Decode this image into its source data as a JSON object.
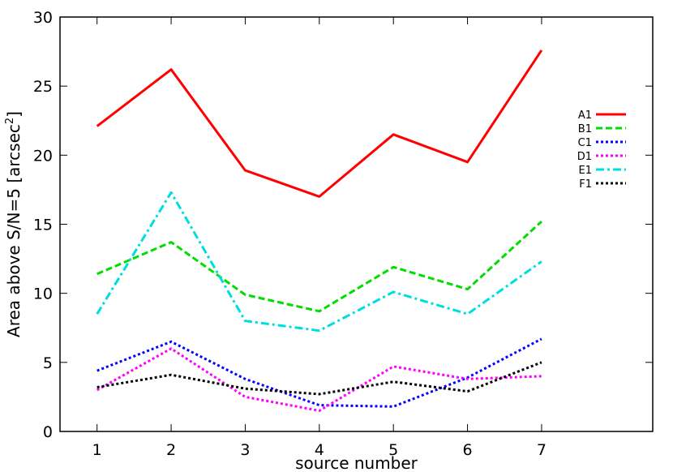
{
  "chart_data": {
    "type": "line",
    "title": "",
    "xlabel": "source number",
    "ylabel": "Area above S/N=5 [arcsec",
    "ylabel_sup": "2",
    "ylabel_close": "]",
    "x": [
      1,
      2,
      3,
      4,
      5,
      6,
      7
    ],
    "xlim": [
      0.5,
      8.5
    ],
    "ylim": [
      0,
      30
    ],
    "xticks": [
      "1",
      "2",
      "3",
      "4",
      "5",
      "6",
      "7"
    ],
    "yticks": [
      "0",
      "5",
      "10",
      "15",
      "20",
      "25",
      "30"
    ],
    "grid": false,
    "legend_position": "top-right",
    "series": [
      {
        "name": "A1",
        "color": "#ff0000",
        "dash": "solid",
        "values": [
          22.1,
          26.2,
          18.9,
          17.0,
          21.5,
          19.5,
          27.6
        ]
      },
      {
        "name": "B1",
        "color": "#00dd00",
        "dash": "dashed",
        "values": [
          11.4,
          13.7,
          9.9,
          8.7,
          11.9,
          10.3,
          15.2
        ]
      },
      {
        "name": "C1",
        "color": "#0000ff",
        "dash": "dotted",
        "values": [
          4.4,
          6.5,
          3.8,
          1.9,
          1.8,
          3.9,
          6.7
        ]
      },
      {
        "name": "D1",
        "color": "#ff00ff",
        "dash": "dotted",
        "values": [
          3.0,
          6.0,
          2.5,
          1.5,
          4.7,
          3.8,
          4.0
        ]
      },
      {
        "name": "E1",
        "color": "#00dddd",
        "dash": "dashdot",
        "values": [
          8.5,
          17.3,
          8.0,
          7.3,
          10.1,
          8.5,
          12.3
        ]
      },
      {
        "name": "F1",
        "color": "#000000",
        "dash": "dotted",
        "values": [
          3.2,
          4.1,
          3.1,
          2.7,
          3.6,
          2.9,
          5.0
        ]
      }
    ]
  }
}
